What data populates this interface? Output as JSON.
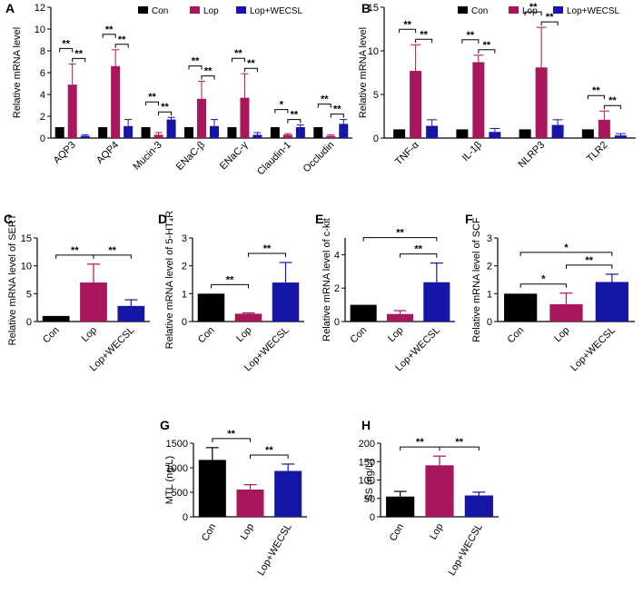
{
  "colors": {
    "con": "#000000",
    "lop": "#A8165C",
    "wecsl": "#1616A6",
    "axis": "#000000"
  },
  "legend": {
    "con": "Con",
    "lop": "Lop",
    "wecsl": "Lop+WECSL"
  },
  "chart_data": [
    {
      "panel": "A",
      "type": "bar",
      "ylabel": "Relative mRNA level",
      "ylim": [
        0,
        12
      ],
      "yticks": [
        0,
        2,
        4,
        6,
        8,
        10,
        12
      ],
      "categories": [
        "AQP3",
        "AQP4",
        "Mucin-3",
        "ENaC-β",
        "ENaC-γ",
        "Claudin-1",
        "Occludin"
      ],
      "series": [
        {
          "name": "Con",
          "values": [
            1,
            1,
            1,
            1,
            1,
            1,
            1
          ],
          "err": [
            0,
            0,
            0,
            0,
            0,
            0,
            0
          ]
        },
        {
          "name": "Lop",
          "values": [
            4.9,
            6.6,
            0.3,
            3.6,
            3.7,
            0.3,
            0.2
          ],
          "err": [
            1.9,
            1.5,
            0.2,
            1.6,
            2.2,
            0.1,
            0.1
          ]
        },
        {
          "name": "Lop+WECSL",
          "values": [
            0.2,
            1.1,
            1.7,
            1.1,
            0.3,
            1.0,
            1.3
          ],
          "err": [
            0.1,
            0.6,
            0.2,
            0.6,
            0.2,
            0.2,
            0.4
          ]
        }
      ],
      "sig": [
        "**",
        "**",
        "**",
        "**",
        "**",
        "**",
        "**",
        "**",
        "**",
        "**",
        "*",
        "**",
        "**",
        "**"
      ]
    },
    {
      "panel": "B",
      "type": "bar",
      "ylabel": "Relative mRNA level",
      "ylim": [
        0,
        15
      ],
      "yticks": [
        0,
        5,
        10,
        15
      ],
      "categories": [
        "TNF-α",
        "IL-1β",
        "NLRP3",
        "TLR2"
      ],
      "series": [
        {
          "name": "Con",
          "values": [
            1,
            1,
            1,
            1
          ],
          "err": [
            0,
            0,
            0,
            0
          ]
        },
        {
          "name": "Lop",
          "values": [
            7.7,
            8.7,
            8.1,
            2.1
          ],
          "err": [
            3.0,
            0.8,
            4.6,
            1.0
          ]
        },
        {
          "name": "Lop+WECSL",
          "values": [
            1.4,
            0.7,
            1.5,
            0.3
          ],
          "err": [
            0.7,
            0.4,
            0.6,
            0.2
          ]
        }
      ],
      "sig": [
        "**",
        "**",
        "**",
        "**",
        "**",
        "**",
        "**",
        "**"
      ]
    },
    {
      "panel": "C",
      "type": "bar",
      "ylabel": "Relative mRNA level of SERT",
      "ylim": [
        0,
        15
      ],
      "yticks": [
        0,
        5,
        10,
        15
      ],
      "categories": [
        "Con",
        "Lop",
        "Lop+WECSL"
      ],
      "values": [
        1,
        7.0,
        2.8
      ],
      "err": [
        0,
        3.3,
        1.1
      ],
      "sig": [
        "**",
        "**"
      ]
    },
    {
      "panel": "D",
      "type": "bar",
      "ylabel": "Relative mRNA level of 5-HT₄R",
      "ylim": [
        0,
        3
      ],
      "yticks": [
        0,
        1,
        2,
        3
      ],
      "categories": [
        "Con",
        "Lop",
        "Lop+WECSL"
      ],
      "values": [
        1,
        0.28,
        1.4
      ],
      "err": [
        0,
        0.03,
        0.72
      ],
      "sig": [
        "**",
        "**"
      ]
    },
    {
      "panel": "E",
      "type": "bar",
      "ylabel": "Relative mRNA level of c-kit",
      "ylim": [
        0,
        5
      ],
      "yticks": [
        0,
        2,
        4
      ],
      "categories": [
        "Con",
        "Lop",
        "Lop+WECSL"
      ],
      "values": [
        1,
        0.45,
        2.35
      ],
      "err": [
        0,
        0.2,
        1.15
      ],
      "sig": [
        "**",
        "**"
      ]
    },
    {
      "panel": "F",
      "type": "bar",
      "ylabel": "Relative mRNA level of SCF",
      "ylim": [
        0,
        3
      ],
      "yticks": [
        0,
        1,
        2,
        3
      ],
      "categories": [
        "Con",
        "Lop",
        "Lop+WECSL"
      ],
      "values": [
        1,
        0.62,
        1.42
      ],
      "err": [
        0,
        0.4,
        0.28
      ],
      "sig": [
        "*",
        "*",
        "**"
      ]
    },
    {
      "panel": "G",
      "type": "bar",
      "ylabel": "MTL (ng/L)",
      "ylim": [
        0,
        1500
      ],
      "yticks": [
        0,
        500,
        1000,
        1500
      ],
      "categories": [
        "Con",
        "Lop",
        "Lop+WECSL"
      ],
      "values": [
        1160,
        555,
        935
      ],
      "err": [
        250,
        100,
        140
      ],
      "sig": [
        "**",
        "**"
      ]
    },
    {
      "panel": "H",
      "type": "bar",
      "ylabel": "SS (ng/L)",
      "ylim": [
        0,
        200
      ],
      "yticks": [
        0,
        50,
        100,
        150,
        200
      ],
      "categories": [
        "Con",
        "Lop",
        "Lop+WECSL"
      ],
      "values": [
        55,
        140,
        58
      ],
      "err": [
        14,
        25,
        9
      ],
      "sig": [
        "**",
        "**"
      ]
    }
  ]
}
